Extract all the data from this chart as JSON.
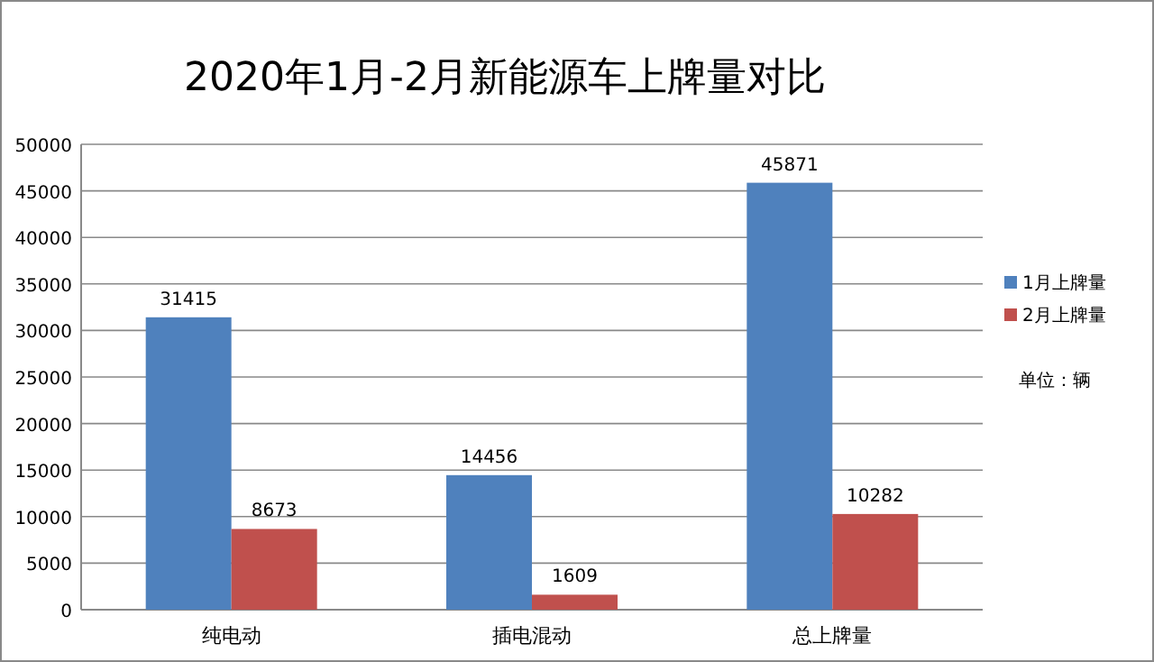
{
  "chart_data": {
    "type": "bar",
    "title": "2020年1月-2月新能源车上牌量对比",
    "categories": [
      "纯电动",
      "插电混动",
      "总上牌量"
    ],
    "series": [
      {
        "name": "1月上牌量",
        "color": "#4f81bd",
        "values": [
          31415,
          14456,
          45871
        ]
      },
      {
        "name": "2月上牌量",
        "color": "#c0504d",
        "values": [
          8673,
          1609,
          10282
        ]
      }
    ],
    "ylim": [
      0,
      50000
    ],
    "yticks": [
      0,
      5000,
      10000,
      15000,
      20000,
      25000,
      30000,
      35000,
      40000,
      45000,
      50000
    ],
    "grid": "y",
    "legend": "right",
    "data_labels": true,
    "annotations": [
      "单位：辆"
    ]
  }
}
